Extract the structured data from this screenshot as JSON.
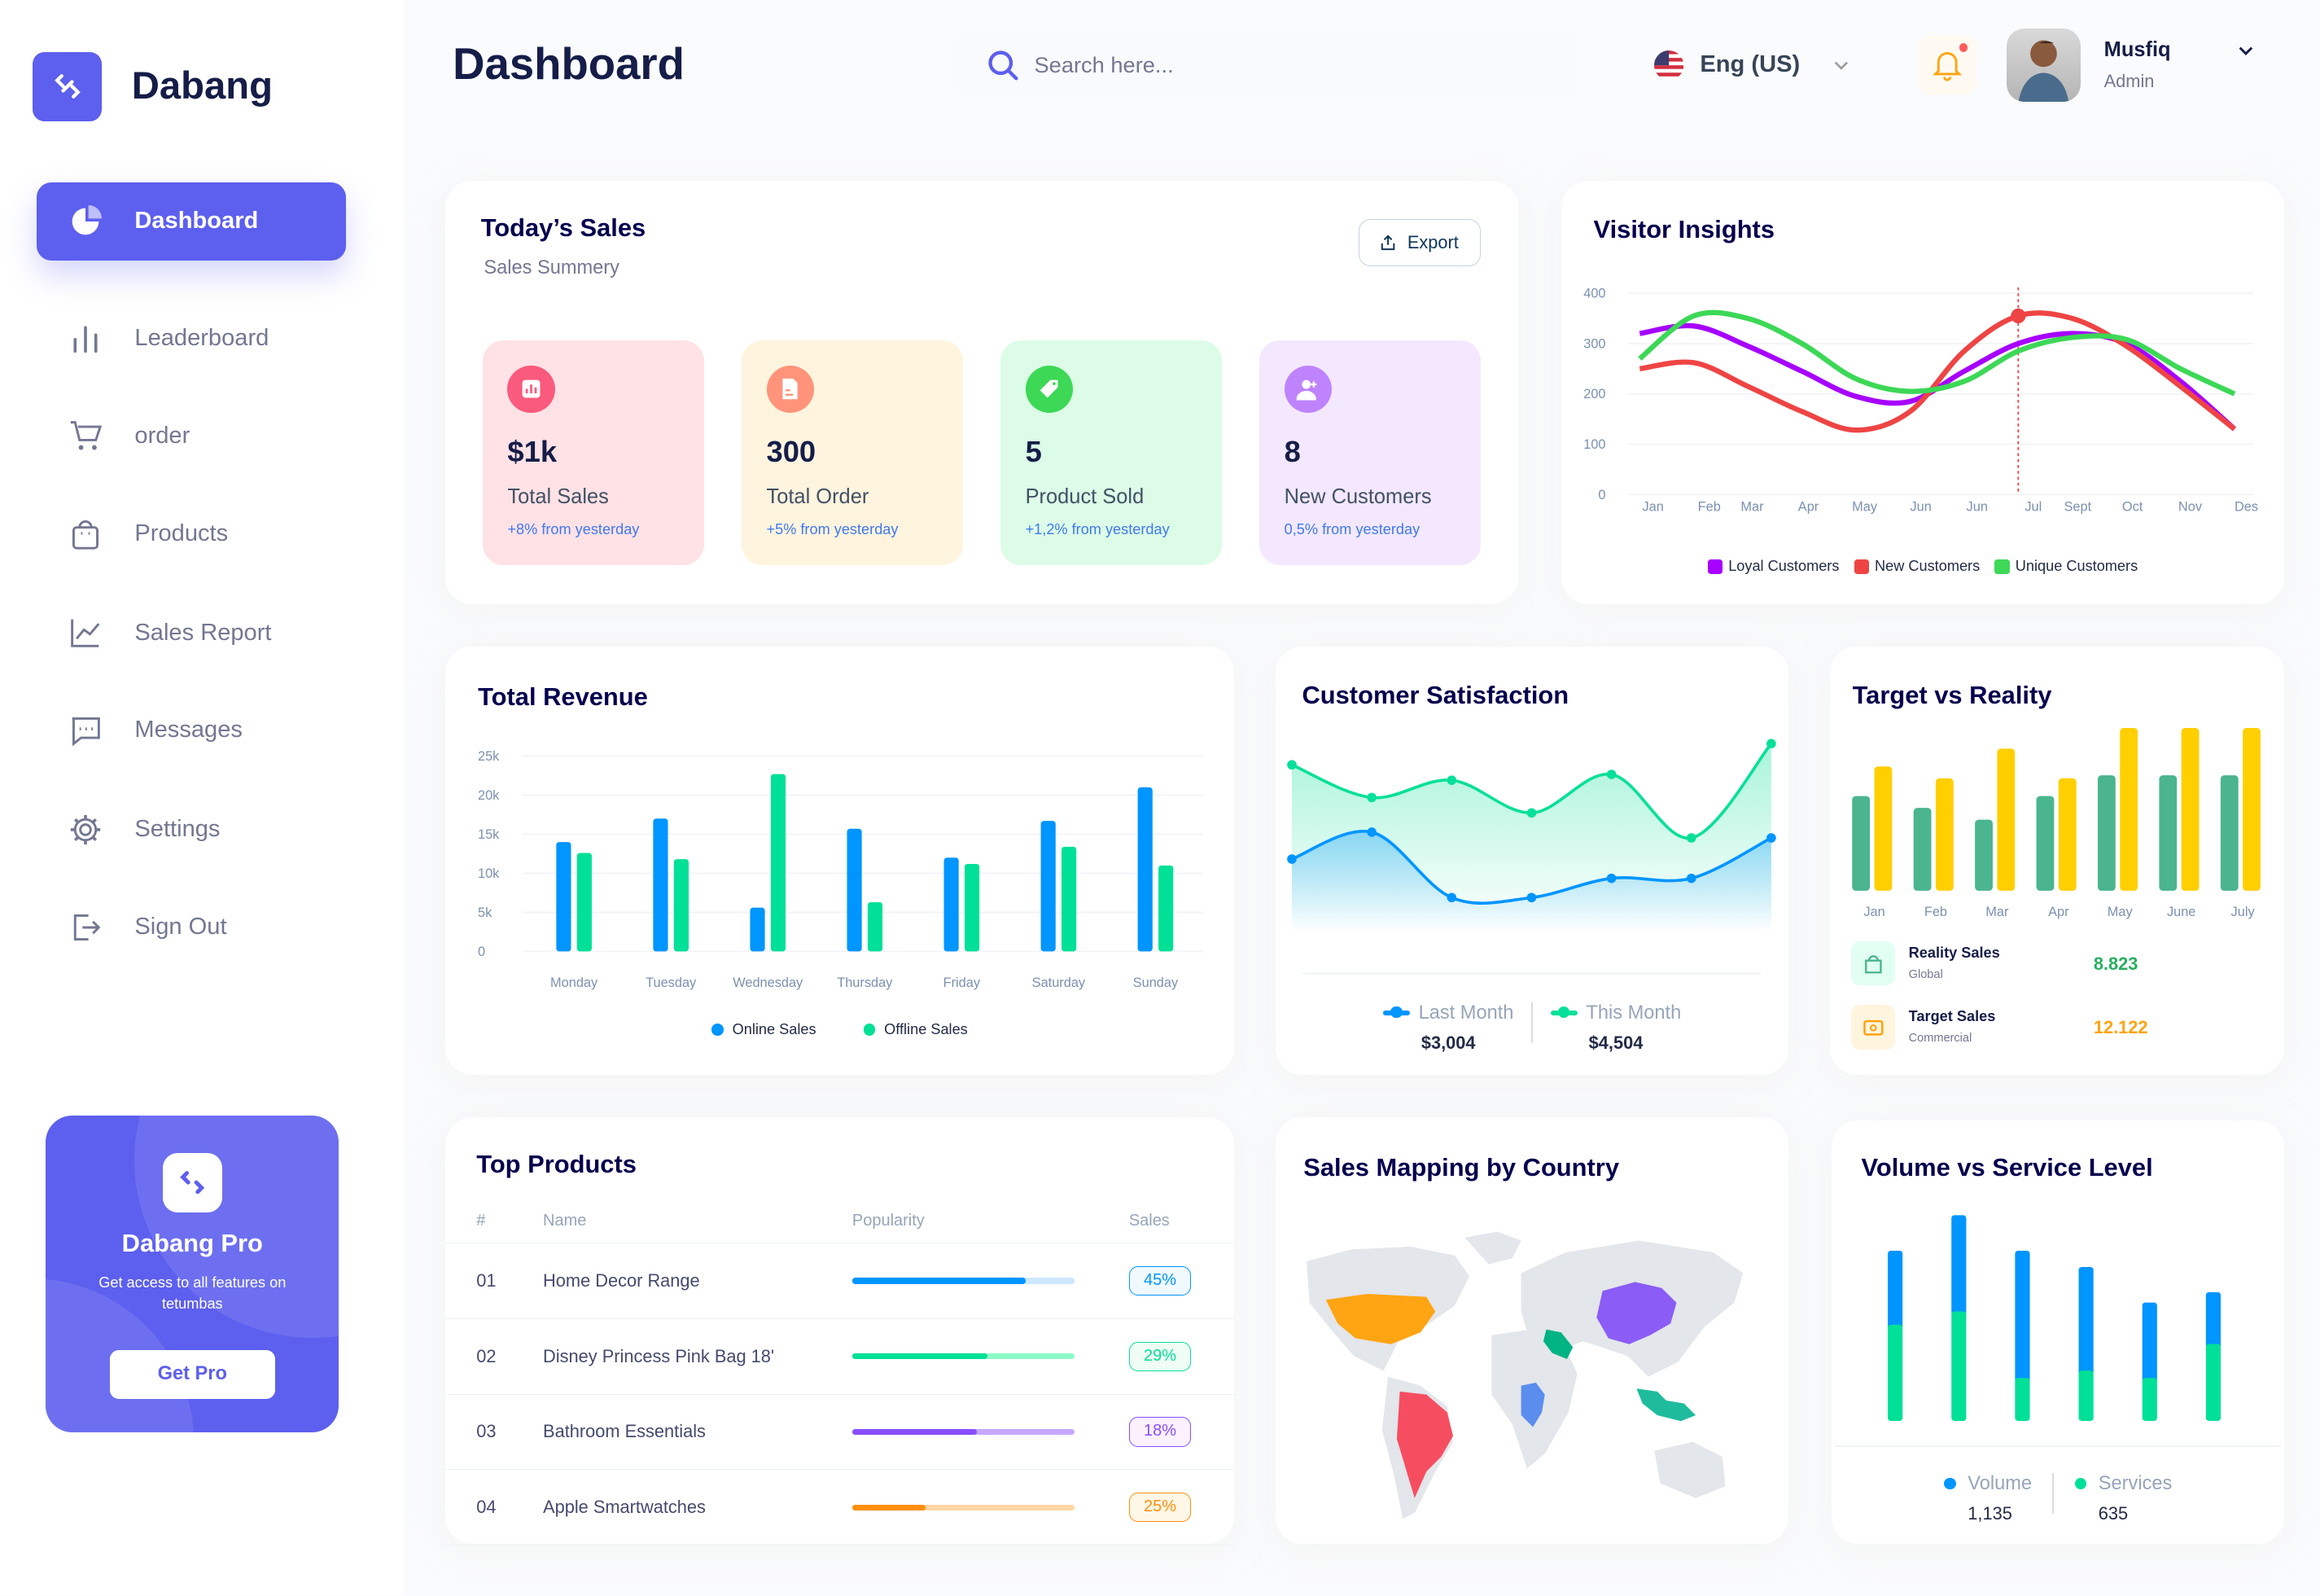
{
  "app": {
    "name": "Dabang",
    "page_title": "Dashboard"
  },
  "sidebar": {
    "items": [
      {
        "label": "Dashboard",
        "icon": "pie-chart-icon",
        "active": true
      },
      {
        "label": "Leaderboard",
        "icon": "bar-chart-icon"
      },
      {
        "label": "order",
        "icon": "cart-icon"
      },
      {
        "label": "Products",
        "icon": "shopping-bag-icon"
      },
      {
        "label": "Sales Report",
        "icon": "line-chart-icon"
      },
      {
        "label": "Messages",
        "icon": "message-icon"
      },
      {
        "label": "Settings",
        "icon": "gear-icon"
      },
      {
        "label": "Sign Out",
        "icon": "sign-out-icon"
      }
    ],
    "promo": {
      "title": "Dabang Pro",
      "description": "Get access to all features on tetumbas",
      "button": "Get Pro"
    }
  },
  "header": {
    "search_placeholder": "Search here...",
    "language": "Eng (US)",
    "user": {
      "name": "Musfiq",
      "role": "Admin"
    },
    "has_notification": true
  },
  "todays_sales": {
    "title": "Today’s Sales",
    "subtitle": "Sales Summery",
    "export_label": "Export",
    "stats": [
      {
        "value": "$1k",
        "label": "Total Sales",
        "delta": "+8% from yesterday",
        "bg": "#ffe2e5",
        "icon_bg": "#fa5a7d",
        "icon": "bar-chart-icon"
      },
      {
        "value": "300",
        "label": "Total Order",
        "delta": "+5% from yesterday",
        "bg": "#fff4de",
        "icon_bg": "#ff947a",
        "icon": "document-icon"
      },
      {
        "value": "5",
        "label": "Product Sold",
        "delta": "+1,2% from yesterday",
        "bg": "#dcfce7",
        "icon_bg": "#3cd856",
        "icon": "tag-icon"
      },
      {
        "value": "8",
        "label": "New Customers",
        "delta": "0,5% from yesterday",
        "bg": "#f3e8ff",
        "icon_bg": "#bf83ff",
        "icon": "add-user-icon"
      }
    ]
  },
  "chart_data": [
    {
      "id": "visitor",
      "type": "line",
      "title": "Visitor Insights",
      "x": [
        "Jan",
        "Feb",
        "Mar",
        "Apr",
        "May",
        "Jun",
        "Jun",
        "Jul",
        "Sept",
        "Oct",
        "Nov",
        "Des"
      ],
      "yticks": [
        "0",
        "100",
        "200",
        "300",
        "400"
      ],
      "ylim": [
        0,
        400
      ],
      "legend": "bottom",
      "highlight": {
        "series": "New Customers",
        "x": "Jul"
      },
      "series": [
        {
          "name": "Loyal Customers",
          "color": "#a700ff",
          "values": [
            320,
            335,
            295,
            245,
            195,
            185,
            245,
            300,
            320,
            300,
            225,
            130
          ]
        },
        {
          "name": "New Customers",
          "color": "#ef4444",
          "values": [
            250,
            262,
            215,
            165,
            128,
            165,
            285,
            355,
            350,
            295,
            215,
            130
          ]
        },
        {
          "name": "Unique Customers",
          "color": "#3cd856",
          "values": [
            270,
            355,
            350,
            300,
            230,
            205,
            225,
            285,
            312,
            308,
            250,
            200
          ]
        }
      ]
    },
    {
      "id": "revenue",
      "type": "bar",
      "title": "Total Revenue",
      "categories": [
        "Monday",
        "Tuesday",
        "Wednesday",
        "Thursday",
        "Friday",
        "Saturday",
        "Sunday"
      ],
      "yticks": [
        "0",
        "5k",
        "10k",
        "15k",
        "20k",
        "25k"
      ],
      "ylim": [
        0,
        25000
      ],
      "legend": "bottom",
      "grid": true,
      "series": [
        {
          "name": "Online Sales",
          "color": "#0095ff",
          "values": [
            14000,
            17000,
            5600,
            15700,
            12000,
            16700,
            21000
          ]
        },
        {
          "name": "Offline Sales",
          "color": "#00e096",
          "values": [
            12600,
            11800,
            22700,
            6300,
            11200,
            13400,
            11000
          ]
        }
      ]
    },
    {
      "id": "satisfaction",
      "type": "area",
      "title": "Customer Satisfaction",
      "ylim": [
        0,
        100
      ],
      "legend": "bottom",
      "series": [
        {
          "name": "Last Month",
          "total": "$3,004",
          "color": "#0095ff",
          "values": [
            38,
            52,
            18,
            18,
            28,
            28,
            49
          ]
        },
        {
          "name": "This Month",
          "total": "$4,504",
          "color": "#07e098",
          "values": [
            87,
            70,
            79,
            62,
            82,
            49,
            98
          ]
        }
      ]
    },
    {
      "id": "target",
      "type": "bar",
      "title": "Target vs Reality",
      "categories": [
        "Jan",
        "Feb",
        "Mar",
        "Apr",
        "May",
        "June",
        "July"
      ],
      "ylim": [
        0,
        110
      ],
      "series": [
        {
          "name": "Reality Sales",
          "sub": "Global",
          "total": "8.823",
          "color": "#4ab58e",
          "values": [
            64,
            56,
            48,
            64,
            78,
            78,
            78
          ]
        },
        {
          "name": "Target Sales",
          "sub": "Commercial",
          "total": "12.122",
          "color": "#ffcf00",
          "values": [
            84,
            76,
            96,
            76,
            110,
            110,
            110
          ]
        }
      ]
    },
    {
      "id": "volume",
      "type": "stacked-bar",
      "title": "Volume vs Service Level",
      "ylim": [
        0,
        140
      ],
      "legend": "bottom",
      "series": [
        {
          "name": "Volume",
          "total": "1,135",
          "color": "#0095ff",
          "values": [
            50,
            65,
            86,
            70,
            51,
            35
          ]
        },
        {
          "name": "Services",
          "total": "635",
          "color": "#00e096",
          "values": [
            65,
            74,
            29,
            34,
            29,
            52
          ]
        }
      ]
    }
  ],
  "top_products": {
    "title": "Top Products",
    "columns": [
      "#",
      "Name",
      "Popularity",
      "Sales"
    ],
    "rows": [
      {
        "num": "01",
        "name": "Home Decor Range",
        "popularity": 0.78,
        "sales": "45%",
        "color": "#0095ff",
        "track": "#cde7ff",
        "bg": "#f0f9ff"
      },
      {
        "num": "02",
        "name": "Disney Princess Pink Bag 18'",
        "popularity": 0.61,
        "sales": "29%",
        "color": "#00e096",
        "track": "#8cfac7",
        "bg": "#f0fdf4"
      },
      {
        "num": "03",
        "name": "Bathroom Essentials",
        "popularity": 0.56,
        "sales": "18%",
        "color": "#884dff",
        "track": "#c5a8ff",
        "bg": "#fbf1ff"
      },
      {
        "num": "04",
        "name": "Apple Smartwatches",
        "popularity": 0.33,
        "sales": "25%",
        "color": "#ff8f0d",
        "track": "#ffd5a4",
        "bg": "#fef6e6"
      }
    ]
  },
  "map": {
    "title": "Sales Mapping by Country",
    "highlighted": [
      {
        "region": "USA",
        "color": "#ffa412"
      },
      {
        "region": "Brazil",
        "color": "#f64e60"
      },
      {
        "region": "China",
        "color": "#8b5cf6"
      },
      {
        "region": "Saudi Arabia",
        "color": "#00b383"
      },
      {
        "region": "Congo",
        "color": "#5a8dee"
      },
      {
        "region": "Indonesia",
        "color": "#1ebc9c"
      }
    ]
  }
}
